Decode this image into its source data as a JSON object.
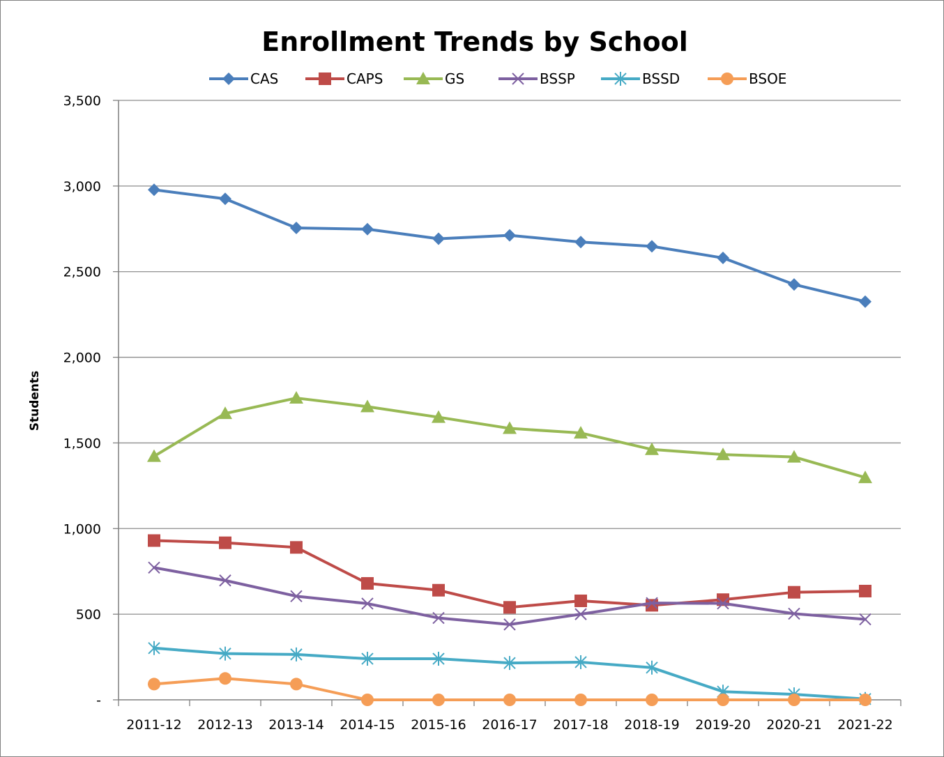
{
  "chart_data": {
    "type": "line",
    "title": "Enrollment Trends by School",
    "xlabel": "",
    "ylabel": "Students",
    "ylim": [
      0,
      3500
    ],
    "yticks": [
      0,
      500,
      1000,
      1500,
      2000,
      2500,
      3000,
      3500
    ],
    "ytick_labels": [
      "-",
      "500",
      "1,000",
      "1,500",
      "2,000",
      "2,500",
      "3,000",
      "3,500"
    ],
    "grid": "horizontal",
    "legend_position": "top",
    "categories": [
      "2011-12",
      "2012-13",
      "2013-14",
      "2014-15",
      "2015-16",
      "2016-17",
      "2017-18",
      "2018-19",
      "2019-20",
      "2020-21",
      "2021-22"
    ],
    "series": [
      {
        "name": "CAS",
        "color": "#4a7ebb",
        "marker": "diamond",
        "values": [
          2978,
          2925,
          2755,
          2748,
          2692,
          2712,
          2673,
          2648,
          2580,
          2425,
          2325
        ]
      },
      {
        "name": "CAPS",
        "color": "#be4b48",
        "marker": "square",
        "values": [
          930,
          917,
          890,
          680,
          640,
          540,
          578,
          552,
          585,
          628,
          635
        ]
      },
      {
        "name": "GS",
        "color": "#98b954",
        "marker": "triangle",
        "values": [
          1422,
          1672,
          1762,
          1712,
          1650,
          1585,
          1558,
          1462,
          1432,
          1418,
          1298
        ]
      },
      {
        "name": "BSSP",
        "color": "#7d60a0",
        "marker": "x",
        "values": [
          772,
          697,
          605,
          562,
          478,
          440,
          500,
          565,
          563,
          503,
          470
        ]
      },
      {
        "name": "BSSD",
        "color": "#46aac5",
        "marker": "star",
        "values": [
          302,
          270,
          265,
          240,
          240,
          215,
          220,
          188,
          48,
          32,
          5
        ]
      },
      {
        "name": "BSOE",
        "color": "#f59d56",
        "marker": "circle",
        "values": [
          92,
          125,
          92,
          0,
          0,
          0,
          0,
          0,
          0,
          0,
          0
        ]
      }
    ]
  }
}
